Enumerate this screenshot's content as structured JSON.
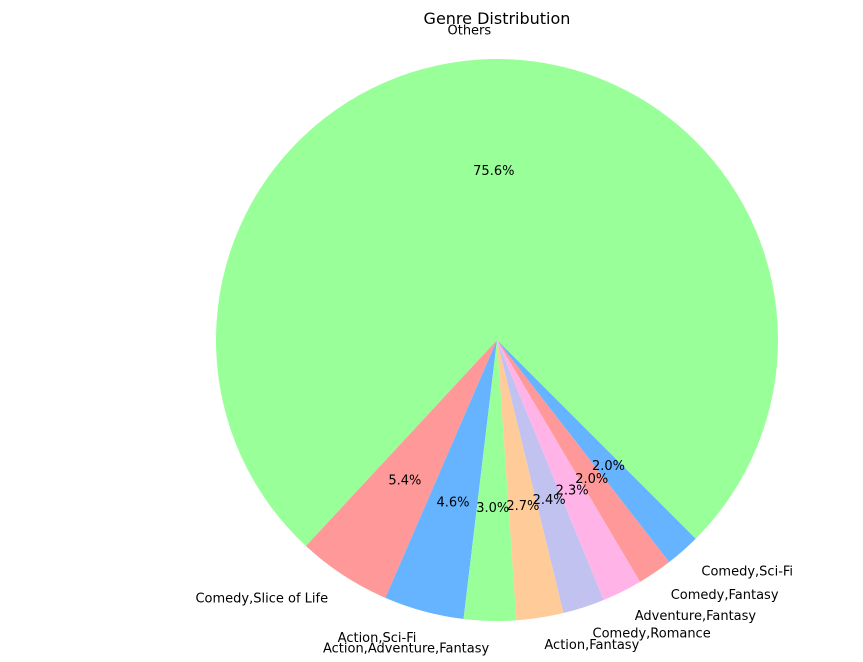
{
  "chart_data": {
    "type": "pie",
    "title": "Genre Distribution",
    "slices": [
      {
        "label": "Others",
        "value": 75.6,
        "pct_label": "75.6%",
        "color": "#99ff99"
      },
      {
        "label": "Comedy,Slice of Life",
        "value": 5.4,
        "pct_label": "5.4%",
        "color": "#ff9999"
      },
      {
        "label": "Action,Sci-Fi",
        "value": 4.6,
        "pct_label": "4.6%",
        "color": "#66b3ff"
      },
      {
        "label": "Action,Adventure,Fantasy",
        "value": 3.0,
        "pct_label": "3.0%",
        "color": "#99ff99"
      },
      {
        "label": "Action,Fantasy",
        "value": 2.7,
        "pct_label": "2.7%",
        "color": "#ffcc99"
      },
      {
        "label": "Comedy,Romance",
        "value": 2.4,
        "pct_label": "2.4%",
        "color": "#c2c2f0"
      },
      {
        "label": "Adventure,Fantasy",
        "value": 2.3,
        "pct_label": "2.3%",
        "color": "#ffb3e6"
      },
      {
        "label": "Comedy,Fantasy",
        "value": 2.0,
        "pct_label": "2.0%",
        "color": "#ff9999"
      },
      {
        "label": "Comedy,Sci-Fi",
        "value": 2.0,
        "pct_label": "2.0%",
        "color": "#66b3ff"
      }
    ]
  }
}
